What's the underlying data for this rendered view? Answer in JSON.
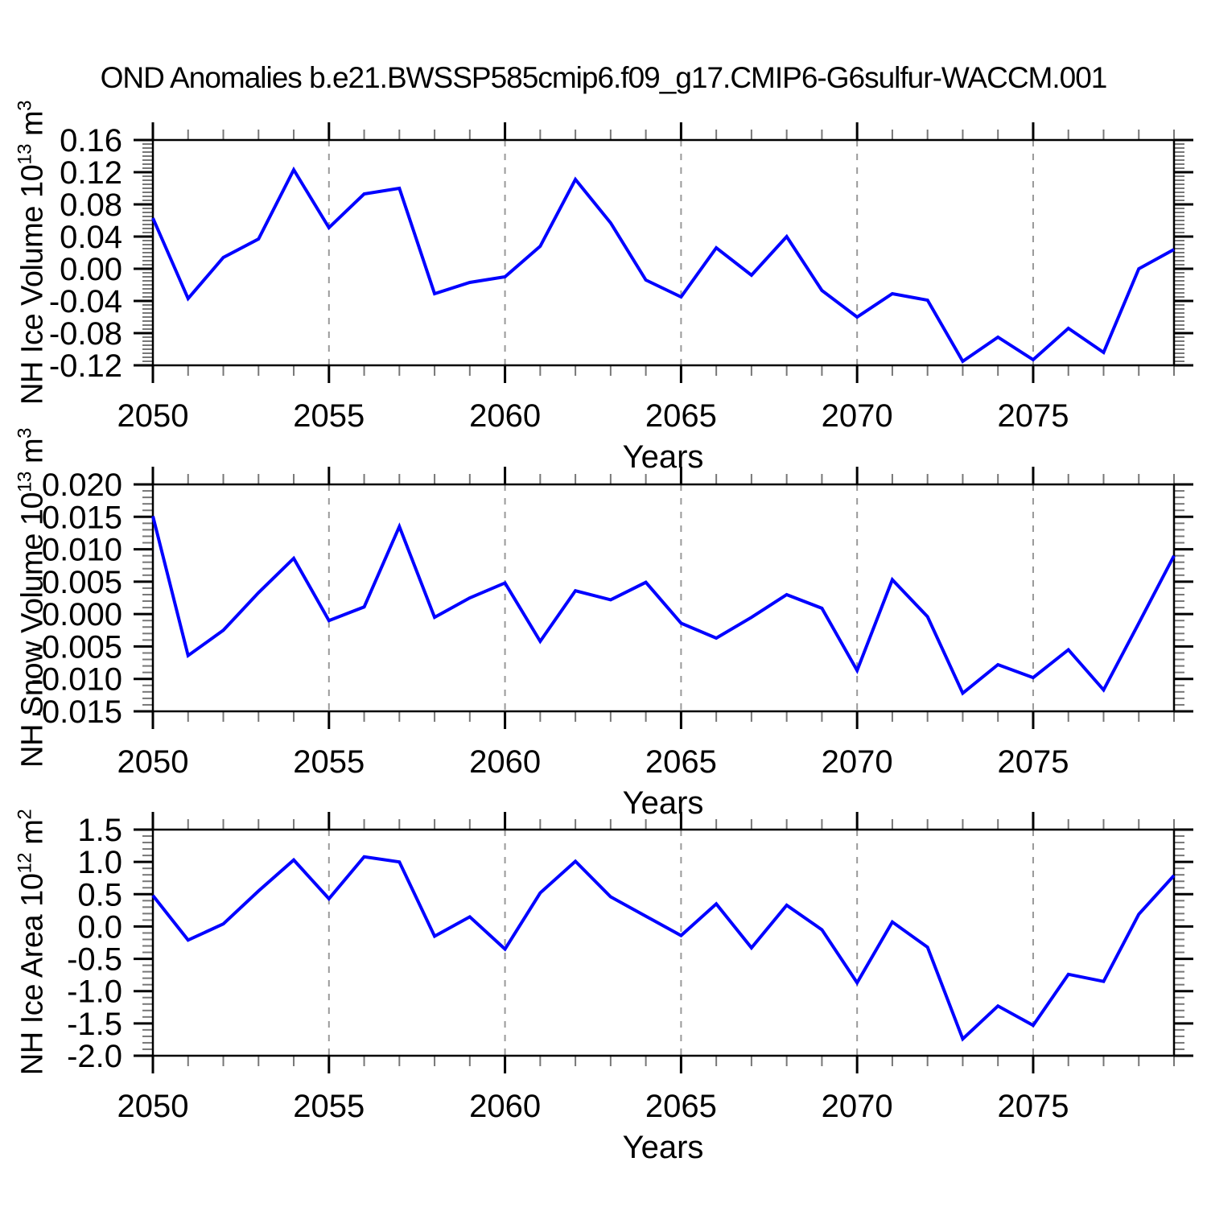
{
  "title": "OND Anomalies b.e21.BWSSP585cmip6.f09_g17.CMIP6-G6sulfur-WACCM.001",
  "line_color": "#0000ff",
  "grid_color": "#999999",
  "minor_tick_color": "#777777",
  "axis_color": "#000000",
  "chart_data": [
    {
      "type": "line",
      "title": "OND Anomalies b.e21.BWSSP585cmip6.f09_g17.CMIP6-G6sulfur-WACCM.001",
      "ylabel": "NH Ice Volume 10^13 m^3",
      "ylabel_parts": {
        "prefix": "NH Ice Volume 10",
        "exp": "13",
        "mid": " m",
        "exp2": "3"
      },
      "xlabel": "Years",
      "x": [
        2050,
        2051,
        2052,
        2053,
        2054,
        2055,
        2056,
        2057,
        2058,
        2059,
        2060,
        2061,
        2062,
        2063,
        2064,
        2065,
        2066,
        2067,
        2068,
        2069,
        2070,
        2071,
        2072,
        2073,
        2074,
        2075,
        2076,
        2077,
        2078,
        2079
      ],
      "values": [
        0.063,
        -0.037,
        0.014,
        0.037,
        0.123,
        0.051,
        0.093,
        0.1,
        -0.031,
        -0.017,
        -0.01,
        0.028,
        0.111,
        0.057,
        -0.014,
        -0.035,
        0.026,
        -0.008,
        0.04,
        -0.027,
        -0.06,
        -0.031,
        -0.039,
        -0.115,
        -0.085,
        -0.113,
        -0.074,
        -0.104,
        0.0,
        0.024
      ],
      "ylim": [
        -0.12,
        0.16
      ],
      "ytick_step": 0.04,
      "yminor_step": 0.005,
      "ytick_decimals": 2,
      "xlim": [
        2050,
        2079
      ],
      "xticks": [
        2050,
        2055,
        2060,
        2065,
        2070,
        2075
      ],
      "grid_x": [
        2055,
        2060,
        2065,
        2070,
        2075
      ],
      "grid_style": "dashed-vertical"
    },
    {
      "type": "line",
      "title": "",
      "ylabel": "NH Snow Volume 10^13 m^3",
      "ylabel_parts": {
        "prefix": "NH Snow Volume 10",
        "exp": "13",
        "mid": " m",
        "exp2": "3"
      },
      "xlabel": "Years",
      "x": [
        2050,
        2051,
        2052,
        2053,
        2054,
        2055,
        2056,
        2057,
        2058,
        2059,
        2060,
        2061,
        2062,
        2063,
        2064,
        2065,
        2066,
        2067,
        2068,
        2069,
        2070,
        2071,
        2072,
        2073,
        2074,
        2075,
        2076,
        2077,
        2078,
        2079
      ],
      "values": [
        0.0151,
        -0.0064,
        -0.0025,
        0.0033,
        0.0086,
        -0.001,
        0.0011,
        0.0135,
        -0.0005,
        0.0025,
        0.0048,
        -0.0042,
        0.0036,
        0.0022,
        0.0049,
        -0.0014,
        -0.0037,
        -0.0005,
        0.003,
        0.0009,
        -0.0087,
        0.0053,
        -0.0004,
        -0.0122,
        -0.0078,
        -0.0098,
        -0.0055,
        -0.0117,
        -0.0014,
        0.009
      ],
      "ylim": [
        -0.015,
        0.02
      ],
      "ytick_step": 0.005,
      "yminor_step": 0.001,
      "ytick_decimals": 3,
      "xlim": [
        2050,
        2079
      ],
      "xticks": [
        2050,
        2055,
        2060,
        2065,
        2070,
        2075
      ],
      "grid_x": [
        2055,
        2060,
        2065,
        2070,
        2075
      ],
      "grid_style": "dashed-vertical"
    },
    {
      "type": "line",
      "title": "",
      "ylabel": "NH Ice Area 10^12 m^2",
      "ylabel_parts": {
        "prefix": "NH Ice Area 10",
        "exp": "12",
        "mid": " m",
        "exp2": "2"
      },
      "xlabel": "Years",
      "x": [
        2050,
        2051,
        2052,
        2053,
        2054,
        2055,
        2056,
        2057,
        2058,
        2059,
        2060,
        2061,
        2062,
        2063,
        2064,
        2065,
        2066,
        2067,
        2068,
        2069,
        2070,
        2071,
        2072,
        2073,
        2074,
        2075,
        2076,
        2077,
        2078,
        2079
      ],
      "values": [
        0.48,
        -0.21,
        0.04,
        0.55,
        1.03,
        0.43,
        1.08,
        1.0,
        -0.15,
        0.15,
        -0.35,
        0.52,
        1.01,
        0.46,
        0.16,
        -0.14,
        0.35,
        -0.33,
        0.33,
        -0.05,
        -0.87,
        0.07,
        -0.32,
        -1.74,
        -1.23,
        -1.53,
        -0.74,
        -0.85,
        0.19,
        0.79
      ],
      "ylim": [
        -2.0,
        1.5
      ],
      "ytick_step": 0.5,
      "yminor_step": 0.1,
      "ytick_decimals": 1,
      "xlim": [
        2050,
        2079
      ],
      "xticks": [
        2050,
        2055,
        2060,
        2065,
        2070,
        2075
      ],
      "grid_x": [
        2055,
        2060,
        2065,
        2070,
        2075
      ],
      "grid_style": "dashed-vertical"
    }
  ]
}
